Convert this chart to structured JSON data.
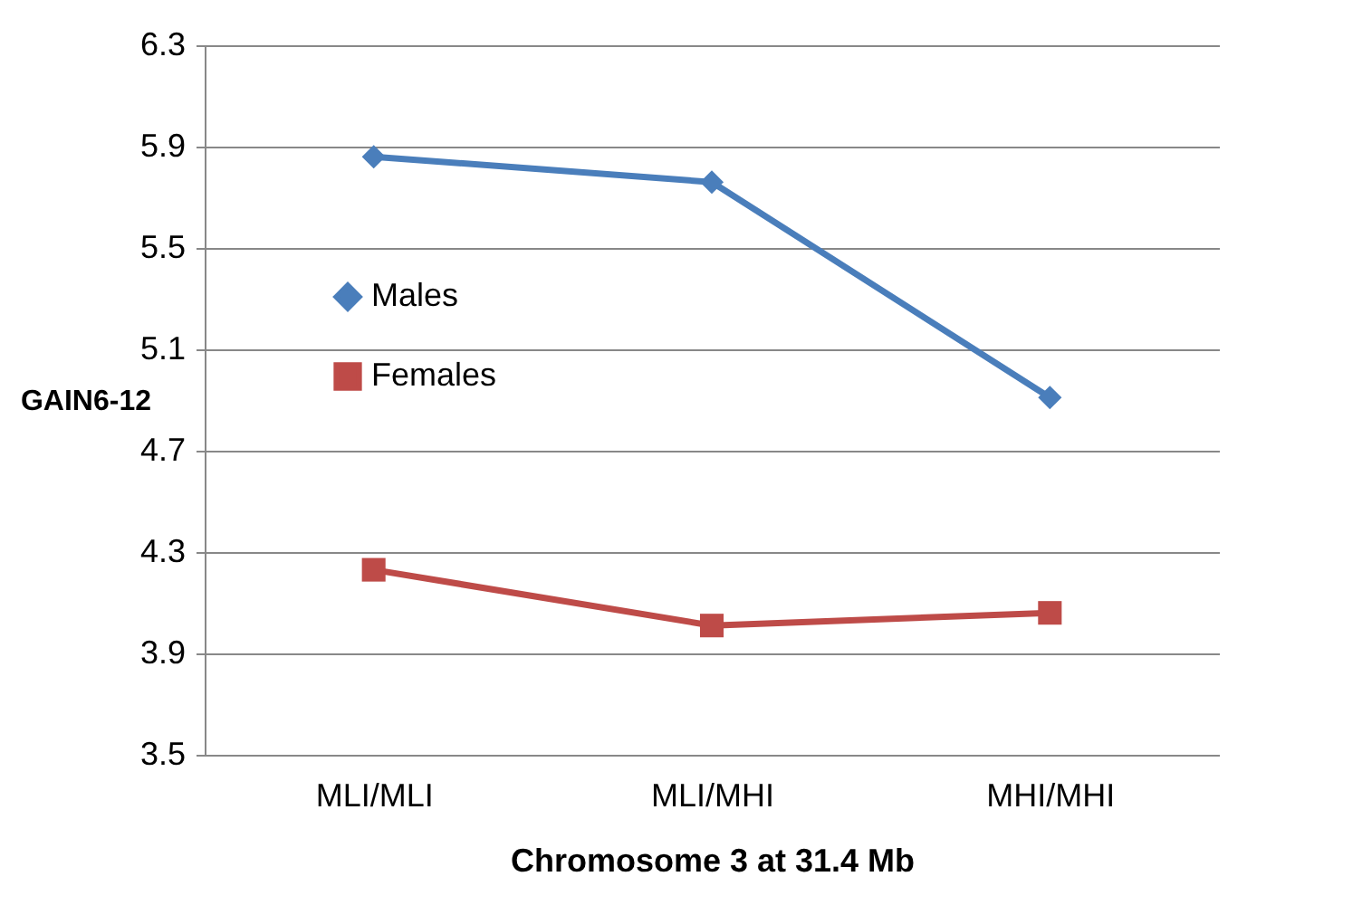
{
  "chart_data": {
    "type": "line",
    "xlabel": "Chromosome 3 at 31.4 Mb",
    "ylabel": "GAIN6-12",
    "categories": [
      "MLI/MLI",
      "MLI/MHI",
      "MHI/MHI"
    ],
    "series": [
      {
        "name": "Males",
        "color": "#4a7ebb",
        "values": [
          5.86,
          5.76,
          4.91
        ],
        "marker": "diamond"
      },
      {
        "name": "Females",
        "color": "#be4b48",
        "values": [
          4.23,
          4.01,
          4.06
        ],
        "marker": "square"
      }
    ],
    "ylim": [
      3.5,
      6.3
    ],
    "yticks": [
      3.5,
      3.9,
      4.3,
      4.7,
      5.1,
      5.5,
      5.9,
      6.3
    ],
    "grid": "y",
    "legend": "top left"
  }
}
